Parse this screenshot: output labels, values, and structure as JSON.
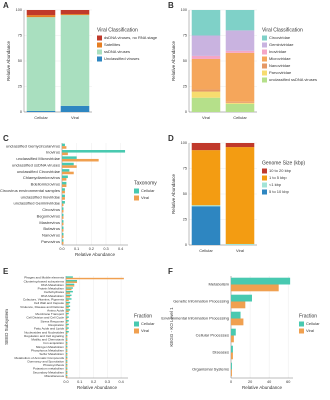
{
  "chart_data": [
    {
      "type": "stacked_bar",
      "panel": "A",
      "ylabel": "Relative Abundance",
      "legend_title": "Viral Classification",
      "categories": [
        "Cellular",
        "Viral"
      ],
      "series": [
        {
          "name": "dsDNA viruses, no RNA stage",
          "color": "#c0392b",
          "values": [
            5,
            4
          ]
        },
        {
          "name": "Satellites",
          "color": "#e67e22",
          "values": [
            2,
            1
          ]
        },
        {
          "name": "ssDNA viruses",
          "color": "#a9dfbf",
          "values": [
            92,
            89
          ]
        },
        {
          "name": "Unclassified viruses",
          "color": "#2e86c1",
          "values": [
            1,
            6
          ]
        }
      ],
      "ylim": [
        0,
        100
      ],
      "yticks": [
        0,
        25,
        50,
        75,
        100
      ]
    },
    {
      "type": "stacked_bar",
      "panel": "B",
      "ylabel": "Relative Abundance",
      "legend_title": "Viral Classification",
      "categories": [
        "Viral",
        "Cellular"
      ],
      "series": [
        {
          "name": "Circoviridae",
          "color": "#7fd1c8",
          "values": [
            25,
            20
          ]
        },
        {
          "name": "Geminiviridae",
          "color": "#c9b3e0",
          "values": [
            20,
            20
          ]
        },
        {
          "name": "Inoviridae",
          "color": "#f4a6c6",
          "values": [
            3,
            2
          ]
        },
        {
          "name": "Microviridae",
          "color": "#f5a65b",
          "values": [
            30,
            48
          ]
        },
        {
          "name": "Nanoviridae",
          "color": "#e59866",
          "values": [
            2,
            1
          ]
        },
        {
          "name": "Parvoviridae",
          "color": "#f7dc6f",
          "values": [
            6,
            1
          ]
        },
        {
          "name": "unclassified ssDNA viruses",
          "color": "#b5e08a",
          "values": [
            14,
            8
          ]
        }
      ],
      "ylim": [
        0,
        100
      ],
      "yticks": [
        0,
        25,
        50,
        75,
        100
      ]
    },
    {
      "type": "hbar",
      "panel": "C",
      "xlabel": "Relative Abundance",
      "legend_title": "Taxonomy",
      "categories": [
        "unclassified Gemycircularvirus",
        "Inovirus",
        "unclassified Microviridae",
        "unclassified ssDNA viruses",
        "unclassified Circoviridae",
        "Chlamydiamicrovirus",
        "Bdellomicrovirus",
        "Circovirus environmental samples",
        "unclassified Inoviridae",
        "unclassified Geminiviridae",
        "Circovirus",
        "Begomovirus",
        "Mastrevirus",
        "Bufavirus",
        "Nanovirus",
        "Parvovirus"
      ],
      "series": [
        {
          "name": "Cellular",
          "color": "#48c9b0",
          "values": [
            0.02,
            0.43,
            0.1,
            0.08,
            0.05,
            0.04,
            0.03,
            0.02,
            0.02,
            0.02,
            0.01,
            0.01,
            0.01,
            0.01,
            0.01,
            0.01
          ]
        },
        {
          "name": "Viral",
          "color": "#f0a050",
          "values": [
            0.03,
            0.04,
            0.25,
            0.1,
            0.08,
            0.03,
            0.03,
            0.02,
            0.02,
            0.01,
            0.01,
            0.01,
            0.01,
            0.01,
            0.01,
            0.01
          ]
        }
      ],
      "xlim": [
        0,
        0.45
      ],
      "xticks": [
        {
          "value": 0,
          "label": "0.0"
        },
        0.1,
        0.2,
        0.3,
        0.4
      ]
    },
    {
      "type": "stacked_bar",
      "panel": "D",
      "ylabel": "Relative Abundance",
      "legend_title": "Genome Size (kbp)",
      "categories": [
        "Cellular",
        "Viral"
      ],
      "series": [
        {
          "name": "10 to 20 kbp",
          "color": "#c0392b",
          "values": [
            7,
            4
          ]
        },
        {
          "name": "1 to 5 kbp",
          "color": "#f39c12",
          "values": [
            54,
            95
          ]
        },
        {
          "name": "<1 kbp",
          "color": "#a3e4d7",
          "values": [
            1,
            1
          ]
        },
        {
          "name": "5 to 10 kbp",
          "color": "#2e86c1",
          "values": [
            38,
            0
          ]
        }
      ],
      "ylim": [
        0,
        100
      ],
      "yticks": [
        0,
        25,
        50,
        75,
        100
      ]
    },
    {
      "type": "hbar",
      "panel": "E",
      "xlabel": "Relative Abundance",
      "ylabel": "SEED Subsystem",
      "legend_title": "Fraction",
      "categories": [
        "Phages and Mobile elements",
        "Clustering-based subsystems",
        "DNA Metabolism",
        "Protein Metabolism",
        "Carbohydrates",
        "RNA Metabolism",
        "Cofactors, Vitamins, Pigments",
        "Cell Wall and Capsule",
        "Virulence, Disease and Defense",
        "Amino Acids",
        "Membrane Transport",
        "Cell Division and Cell Cycle",
        "Stress Response",
        "Respiration",
        "Fatty Acids and Lipids",
        "Nucleosides and Nucleotides",
        "Regulation and Cell signaling",
        "Motility and Chemotaxis",
        "Iron acquisition",
        "Nitrogen Metabolism",
        "Phosphorus Metabolism",
        "Sulfur Metabolism",
        "Metabolism of Aromatic Compounds",
        "Dormancy and Sporulation",
        "Photosynthesis",
        "Potassium metabolism",
        "Secondary Metabolism",
        "Miscellaneous"
      ],
      "series": [
        {
          "name": "Cellular",
          "color": "#48c9b0",
          "values": [
            0.05,
            0.08,
            0.06,
            0.05,
            0.05,
            0.04,
            0.04,
            0.03,
            0.03,
            0.03,
            0.02,
            0.02,
            0.02,
            0.02,
            0.02,
            0.02,
            0.01,
            0.01,
            0.01,
            0.01,
            0.01,
            0.01,
            0.01,
            0.01,
            0.01,
            0.01,
            0.01,
            0.01
          ]
        },
        {
          "name": "Viral",
          "color": "#f0a050",
          "values": [
            0.42,
            0.08,
            0.06,
            0.04,
            0.03,
            0.03,
            0.02,
            0.02,
            0.02,
            0.02,
            0.01,
            0.01,
            0.01,
            0.01,
            0.01,
            0.01,
            0.01,
            0.01,
            0.01,
            0.01,
            0.01,
            0.01,
            0.01,
            0.01,
            0.01,
            0.01,
            0.01,
            0.01
          ]
        }
      ],
      "xlim": [
        0,
        0.45
      ],
      "xticks": [
        {
          "value": 0,
          "label": "0.0"
        },
        0.1,
        0.2,
        0.3,
        0.4
      ]
    },
    {
      "type": "hbar",
      "panel": "F",
      "xlabel": "Relative Abundance",
      "ylabel": "KEGG - KO Level 1",
      "legend_title": "Fraction",
      "categories": [
        "Metabolism",
        "Genetic Information Processing",
        "Environmental Information Processing",
        "Cellular Processes",
        "Diseases",
        "Organismal Systems"
      ],
      "series": [
        {
          "name": "Cellular",
          "color": "#48c9b0",
          "values": [
            62,
            22,
            10,
            5,
            2,
            1
          ]
        },
        {
          "name": "Viral",
          "color": "#f0a050",
          "values": [
            50,
            15,
            13,
            3,
            2,
            1
          ]
        }
      ],
      "xlim": [
        0,
        65
      ],
      "xticks": [
        0,
        20,
        40,
        60
      ]
    }
  ]
}
